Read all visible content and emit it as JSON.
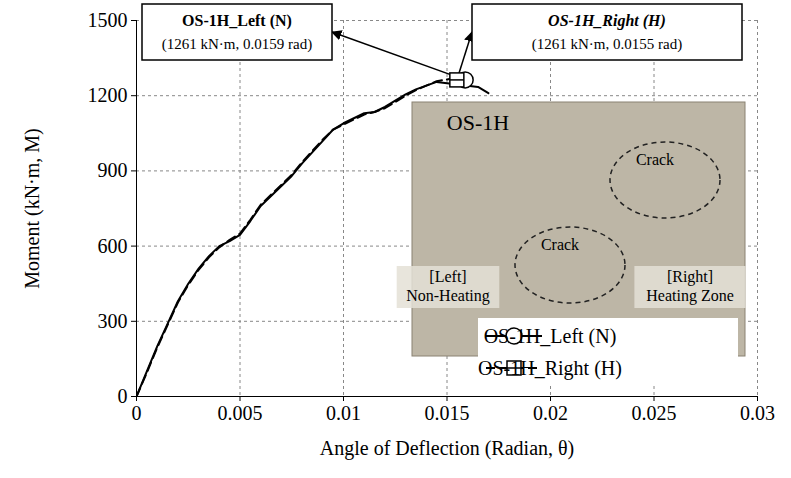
{
  "chart_data": {
    "type": "line",
    "xlabel": "Angle of Deflection (Radian, θ)",
    "ylabel": "Moment (kN·m, M)",
    "xlim": [
      0,
      0.03
    ],
    "xticks": [
      0,
      0.005,
      0.01,
      0.015,
      0.02,
      0.025,
      0.03
    ],
    "ylim": [
      0,
      1500
    ],
    "yticks": [
      0,
      300,
      600,
      900,
      1200,
      1500
    ],
    "grid": true,
    "legend": "lower right",
    "series": [
      {
        "name": "OS-1H_Left (N)",
        "color": "#000000",
        "line_style": "solid",
        "marker": "circle",
        "x": [
          0,
          0.0005,
          0.001,
          0.0015,
          0.002,
          0.0025,
          0.003,
          0.0035,
          0.004,
          0.0045,
          0.005,
          0.0055,
          0.006,
          0.0065,
          0.007,
          0.0075,
          0.008,
          0.0085,
          0.009,
          0.0095,
          0.01,
          0.0105,
          0.011,
          0.0115,
          0.012,
          0.0125,
          0.013,
          0.0135,
          0.014,
          0.0145,
          0.015,
          0.0155,
          0.016,
          0.0165,
          0.017
        ],
        "values": [
          0,
          100,
          200,
          290,
          380,
          450,
          510,
          560,
          600,
          620,
          645,
          700,
          760,
          800,
          840,
          880,
          930,
          975,
          1020,
          1065,
          1090,
          1110,
          1130,
          1135,
          1155,
          1180,
          1205,
          1225,
          1240,
          1255,
          1250,
          1245,
          1240,
          1235,
          1210
        ],
        "peak": {
          "x": 0.0159,
          "y": 1261,
          "label": "(1261 kN·m, 0.0159 rad)"
        }
      },
      {
        "name": "OS-1H_Right (H)",
        "color": "#000000",
        "line_style": "dashed",
        "marker": "square",
        "x": [
          0,
          0.0005,
          0.001,
          0.0015,
          0.002,
          0.0025,
          0.003,
          0.0035,
          0.004,
          0.0045,
          0.005,
          0.0055,
          0.006,
          0.0065,
          0.007,
          0.0075,
          0.008,
          0.0085,
          0.009,
          0.0095,
          0.01,
          0.0105,
          0.011,
          0.0115,
          0.012,
          0.0125,
          0.013,
          0.0135,
          0.014,
          0.0145,
          0.015,
          0.0153,
          0.0155,
          0.016,
          0.0162
        ],
        "values": [
          0,
          95,
          195,
          285,
          375,
          445,
          505,
          555,
          595,
          625,
          650,
          705,
          765,
          805,
          845,
          885,
          935,
          980,
          1025,
          1065,
          1085,
          1105,
          1125,
          1135,
          1150,
          1175,
          1200,
          1222,
          1240,
          1258,
          1265,
          1270,
          1260,
          1250,
          1240
        ],
        "peak": {
          "x": 0.0155,
          "y": 1261,
          "label": "(1261 kN·m, 0.0155 rad)"
        }
      }
    ],
    "inset": {
      "title": "OS-1H",
      "labels": [
        "Crack",
        "Crack",
        "[Left]\nNon-Heating",
        "[Right]\nHeating Zone"
      ]
    }
  }
}
